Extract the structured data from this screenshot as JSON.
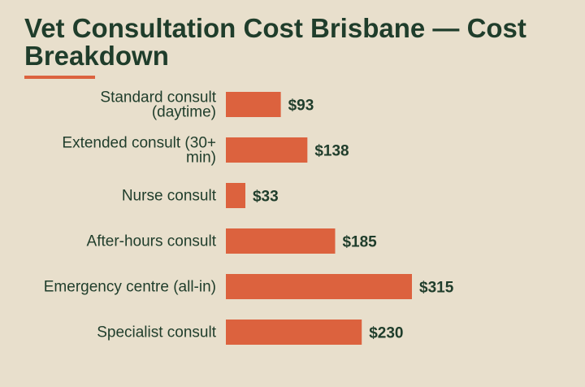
{
  "colors": {
    "background": "#e8dfcc",
    "text": "#1f3d2b",
    "bar": "#dc623e",
    "accent": "#dc623e"
  },
  "chart_data": {
    "type": "bar",
    "orientation": "horizontal",
    "title": "Vet Consultation Cost Brisbane — Cost Breakdown",
    "categories": [
      [
        "Standard consult",
        "(daytime)"
      ],
      [
        "Extended consult (30+",
        "min)"
      ],
      [
        "Nurse consult"
      ],
      [
        "After-hours consult"
      ],
      [
        "Emergency centre (all-in)"
      ],
      [
        "Specialist consult"
      ]
    ],
    "values": [
      93,
      138,
      33,
      185,
      315,
      230
    ],
    "value_labels": [
      "$93",
      "$138",
      "$33",
      "$185",
      "$315",
      "$230"
    ],
    "xlim": [
      0,
      315
    ],
    "grid": false,
    "legend": "none"
  }
}
